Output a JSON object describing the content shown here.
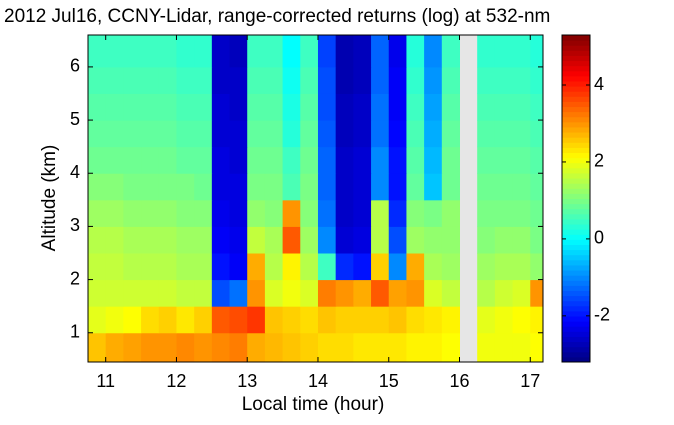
{
  "chart_data": {
    "type": "heatmap",
    "title": "2012 Jul16, CCNY-Lidar, range-corrected returns (log) at 532-nm",
    "xlabel": "Local time (hour)",
    "ylabel": "Altitude (km)",
    "x_edges": [
      10.75,
      11,
      11.25,
      11.5,
      11.75,
      12,
      12.25,
      12.5,
      12.75,
      13,
      13.25,
      13.5,
      13.75,
      14,
      14.25,
      14.5,
      14.75,
      15,
      15.25,
      15.5,
      15.75,
      16,
      16.25,
      16.5,
      16.75,
      17,
      17.18
    ],
    "y_edges": [
      0.45,
      1,
      1.5,
      2,
      2.5,
      3,
      3.5,
      4,
      4.5,
      5,
      5.5,
      6,
      6.6
    ],
    "values": [
      [
        2.6,
        2.8,
        2.9,
        3.0,
        3.0,
        3.1,
        3.0,
        3.1,
        3.2,
        2.8,
        2.7,
        2.6,
        2.5,
        2.4,
        2.4,
        2.3,
        2.3,
        2.3,
        2.2,
        2.2,
        2.1,
        null,
        2.0,
        2.0,
        2.0,
        2.1
      ],
      [
        1.9,
        2.0,
        2.1,
        2.4,
        2.5,
        2.3,
        2.5,
        3.5,
        3.6,
        3.8,
        2.6,
        2.5,
        2.4,
        2.6,
        2.5,
        2.5,
        2.5,
        2.6,
        2.4,
        2.3,
        2.2,
        null,
        1.9,
        2.0,
        2.1,
        2.2
      ],
      [
        1.7,
        1.7,
        1.7,
        1.7,
        1.7,
        1.6,
        1.6,
        -1.5,
        -1.2,
        3.0,
        1.8,
        2.0,
        1.8,
        3.2,
        3.0,
        2.8,
        3.5,
        2.9,
        3.0,
        1.8,
        1.6,
        null,
        1.5,
        1.7,
        1.8,
        3.0
      ],
      [
        1.6,
        1.6,
        1.5,
        1.5,
        1.5,
        1.4,
        1.4,
        -2.0,
        -2.2,
        2.8,
        1.5,
        2.2,
        1.5,
        0.5,
        -1.8,
        -2.0,
        2.5,
        -1.0,
        2.8,
        1.4,
        1.3,
        null,
        1.3,
        1.4,
        1.4,
        1.2
      ],
      [
        1.5,
        1.5,
        1.4,
        1.4,
        1.4,
        1.3,
        1.3,
        -2.2,
        -2.3,
        1.6,
        1.4,
        3.5,
        1.3,
        -1.0,
        -2.5,
        -2.4,
        1.5,
        -1.5,
        1.3,
        1.2,
        1.2,
        null,
        1.1,
        1.2,
        1.2,
        1.0
      ],
      [
        1.3,
        1.3,
        1.2,
        1.2,
        1.2,
        1.1,
        1.1,
        -2.3,
        -2.4,
        1.2,
        1.1,
        3.0,
        1.1,
        -1.2,
        -2.6,
        -2.5,
        1.5,
        -1.8,
        1.1,
        1.0,
        1.2,
        null,
        1.0,
        1.0,
        1.0,
        0.9
      ],
      [
        1.1,
        1.1,
        1.0,
        1.0,
        1.0,
        1.0,
        0.9,
        -2.4,
        -2.4,
        1.0,
        1.0,
        0.6,
        1.0,
        -1.3,
        -2.6,
        -2.5,
        -1.0,
        -2.0,
        0.8,
        -0.5,
        0.9,
        null,
        0.9,
        0.9,
        0.9,
        0.8
      ],
      [
        0.9,
        0.9,
        0.9,
        0.9,
        0.9,
        0.8,
        0.8,
        -2.4,
        -2.5,
        0.9,
        0.9,
        0.5,
        0.9,
        -1.3,
        -2.6,
        -2.5,
        -1.0,
        -2.0,
        0.7,
        -0.6,
        0.9,
        null,
        0.8,
        0.8,
        0.8,
        0.7
      ],
      [
        0.8,
        0.8,
        0.8,
        0.8,
        0.8,
        0.7,
        0.7,
        -2.5,
        -2.5,
        0.8,
        0.8,
        0.3,
        0.8,
        -1.4,
        -2.7,
        -2.6,
        -1.2,
        -2.1,
        0.6,
        -0.7,
        0.8,
        null,
        0.7,
        0.7,
        0.7,
        0.6
      ],
      [
        0.7,
        0.7,
        0.7,
        0.7,
        0.7,
        0.6,
        0.6,
        -2.5,
        -2.6,
        0.7,
        0.7,
        0.2,
        0.7,
        -1.5,
        -2.7,
        -2.6,
        -1.2,
        -2.2,
        0.5,
        -0.8,
        0.7,
        null,
        0.6,
        0.6,
        0.6,
        0.5
      ],
      [
        0.6,
        0.6,
        0.6,
        0.6,
        0.6,
        0.5,
        0.5,
        -2.6,
        -2.6,
        0.6,
        0.6,
        0.1,
        0.6,
        -1.5,
        -2.8,
        -2.7,
        -1.3,
        -2.2,
        0.4,
        -0.9,
        0.6,
        null,
        0.5,
        0.5,
        0.5,
        0.4
      ],
      [
        0.5,
        0.5,
        0.5,
        0.5,
        0.5,
        0.4,
        0.4,
        -2.6,
        -2.7,
        0.5,
        0.5,
        0.0,
        0.5,
        -1.6,
        -2.8,
        -2.7,
        -1.3,
        -2.3,
        0.3,
        -1.0,
        0.5,
        null,
        0.4,
        0.4,
        0.4,
        0.3
      ]
    ],
    "xlim": [
      10.75,
      17.18
    ],
    "ylim": [
      0.45,
      6.6
    ],
    "xticks": [
      11,
      12,
      13,
      14,
      15,
      16,
      17
    ],
    "yticks": [
      1,
      2,
      3,
      4,
      5,
      6
    ],
    "colormap": "jet",
    "clim": [
      -3.2,
      5.3
    ],
    "cticks": [
      -2,
      0,
      2,
      4
    ]
  }
}
